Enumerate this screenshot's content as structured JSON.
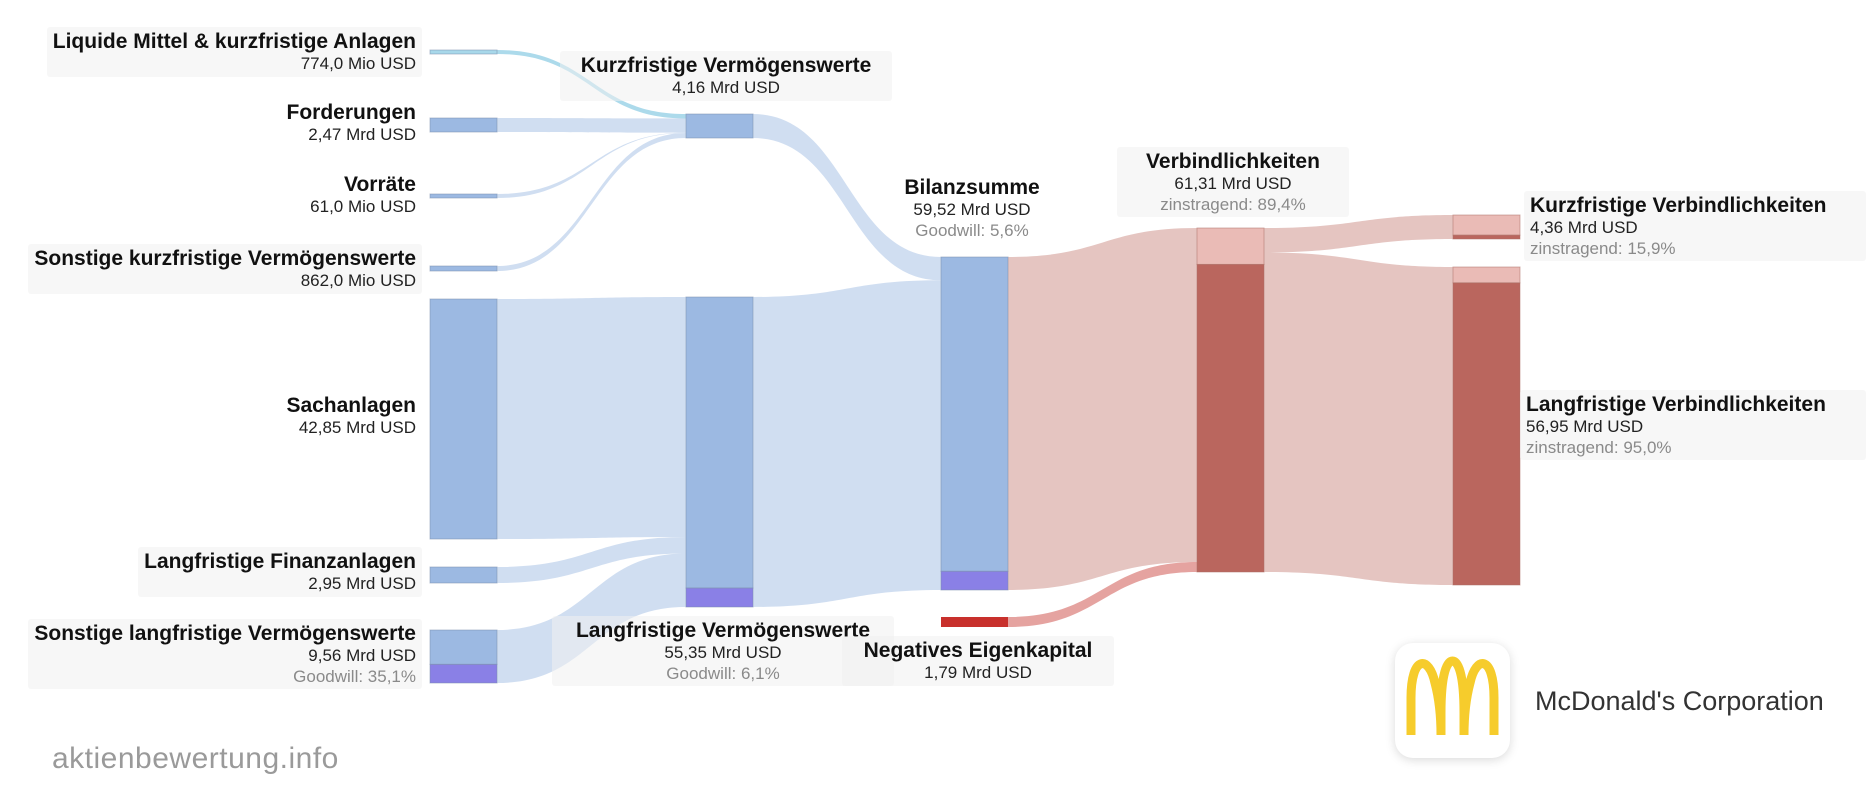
{
  "nodes": {
    "liquid": {
      "title": "Liquide Mittel & kurzfristige Anlagen",
      "value": "774,0 Mio USD"
    },
    "receivables": {
      "title": "Forderungen",
      "value": "2,47 Mrd USD"
    },
    "inventory": {
      "title": "Vorräte",
      "value": "61,0 Mio USD"
    },
    "other_current": {
      "title": "Sonstige kurzfristige Vermögenswerte",
      "value": "862,0 Mio USD"
    },
    "ppe": {
      "title": "Sachanlagen",
      "value": "42,85 Mrd USD"
    },
    "lt_invest": {
      "title": "Langfristige Finanzanlagen",
      "value": "2,95 Mrd USD"
    },
    "other_lt": {
      "title": "Sonstige langfristige Vermögenswerte",
      "value": "9,56 Mrd USD",
      "sub": "Goodwill: 35,1%"
    },
    "current_assets": {
      "title": "Kurzfristige Vermögenswerte",
      "value": "4,16 Mrd USD"
    },
    "lt_assets": {
      "title": "Langfristige Vermögenswerte",
      "value": "55,35 Mrd USD",
      "sub": "Goodwill: 6,1%"
    },
    "total": {
      "title": "Bilanzsumme",
      "value": "59,52 Mrd USD",
      "sub": "Goodwill: 5,6%"
    },
    "neg_equity": {
      "title": "Negatives Eigenkapital",
      "value": "1,79 Mrd USD"
    },
    "liabilities": {
      "title": "Verbindlichkeiten",
      "value": "61,31 Mrd USD",
      "sub": "zinstragend: 89,4%"
    },
    "current_liab": {
      "title": "Kurzfristige Verbindlichkeiten",
      "value": "4,36 Mrd USD",
      "sub": "zinstragend: 15,9%"
    },
    "lt_liab": {
      "title": "Langfristige Verbindlichkeiten",
      "value": "56,95 Mrd USD",
      "sub": "zinstragend: 95,0%"
    }
  },
  "flows_bn_usd": [
    {
      "from": "liquid",
      "to": "current_assets",
      "value": 0.774
    },
    {
      "from": "receivables",
      "to": "current_assets",
      "value": 2.47
    },
    {
      "from": "inventory",
      "to": "current_assets",
      "value": 0.061
    },
    {
      "from": "other_current",
      "to": "current_assets",
      "value": 0.862
    },
    {
      "from": "ppe",
      "to": "lt_assets",
      "value": 42.85
    },
    {
      "from": "lt_invest",
      "to": "lt_assets",
      "value": 2.95
    },
    {
      "from": "other_lt",
      "to": "lt_assets",
      "value": 9.56
    },
    {
      "from": "current_assets",
      "to": "total",
      "value": 4.16
    },
    {
      "from": "lt_assets",
      "to": "total",
      "value": 55.35
    },
    {
      "from": "total",
      "to": "liabilities",
      "value": 59.52
    },
    {
      "from": "neg_equity",
      "to": "liabilities",
      "value": 1.79
    },
    {
      "from": "liabilities",
      "to": "current_liab",
      "value": 4.36
    },
    {
      "from": "liabilities",
      "to": "lt_liab",
      "value": 56.95
    }
  ],
  "colors": {
    "asset_node": "#9cb9e2",
    "asset_flow": "#cddcf0",
    "goodwill": "#8a80e6",
    "liability_light": "#eabbb6",
    "liability_dark": "#ba665e",
    "liability_flow": "#e4c2be",
    "neg_equity": "#c8302c",
    "neg_equity_flow": "#e49e9b",
    "logo_arches": "#f6cc2c"
  },
  "brand": {
    "watermark": "aktienbewertung.info",
    "company": "McDonald's Corporation",
    "logo_icon": "golden-arches-icon"
  }
}
